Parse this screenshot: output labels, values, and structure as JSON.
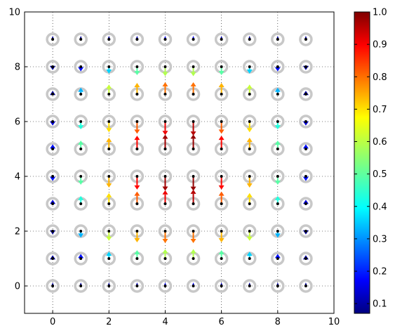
{
  "chart_data": [
    {
      "type": "quiver",
      "xlim": [
        -1,
        10
      ],
      "ylim": [
        -1,
        10
      ],
      "x_ticks": [
        "0",
        "2",
        "4",
        "6",
        "8",
        "10"
      ],
      "y_ticks": [
        "0",
        "2",
        "4",
        "6",
        "8",
        "10"
      ],
      "x_tick_values": [
        0,
        2,
        4,
        6,
        8,
        10
      ],
      "y_tick_values": [
        0,
        2,
        4,
        6,
        8,
        10
      ],
      "grid": "dotted",
      "marker": "light gray ring at each grid point",
      "columns_x": [
        0,
        1,
        2,
        3,
        4,
        5,
        6,
        7,
        8,
        9
      ],
      "rows": [
        {
          "y": 9,
          "dir": 0,
          "magnitude": [
            0.1,
            0.1,
            0.1,
            0.12,
            0.18,
            0.18,
            0.12,
            0.1,
            0.1,
            0.1
          ]
        },
        {
          "y": 8,
          "dir": -1,
          "magnitude": [
            0.1,
            0.2,
            0.38,
            0.5,
            0.58,
            0.58,
            0.5,
            0.38,
            0.2,
            0.1
          ]
        },
        {
          "y": 7,
          "dir": 1,
          "magnitude": [
            0.1,
            0.35,
            0.6,
            0.72,
            0.78,
            0.78,
            0.72,
            0.6,
            0.35,
            0.1
          ]
        },
        {
          "y": 6,
          "dir": -1,
          "magnitude": [
            0.15,
            0.45,
            0.68,
            0.8,
            0.9,
            0.95,
            0.8,
            0.68,
            0.45,
            0.15
          ]
        },
        {
          "y": 5,
          "dir": 1,
          "magnitude": [
            0.2,
            0.5,
            0.72,
            0.88,
            0.97,
            0.98,
            0.88,
            0.72,
            0.5,
            0.2
          ]
        },
        {
          "y": 4,
          "dir": -1,
          "magnitude": [
            0.2,
            0.5,
            0.72,
            0.88,
            0.97,
            0.98,
            0.88,
            0.72,
            0.5,
            0.2
          ]
        },
        {
          "y": 3,
          "dir": 1,
          "magnitude": [
            0.15,
            0.45,
            0.68,
            0.8,
            0.9,
            0.95,
            0.8,
            0.68,
            0.45,
            0.15
          ]
        },
        {
          "y": 2,
          "dir": -1,
          "magnitude": [
            0.1,
            0.35,
            0.6,
            0.72,
            0.78,
            0.78,
            0.72,
            0.6,
            0.35,
            0.1
          ]
        },
        {
          "y": 1,
          "dir": 1,
          "magnitude": [
            0.1,
            0.2,
            0.38,
            0.5,
            0.58,
            0.58,
            0.5,
            0.38,
            0.2,
            0.1
          ]
        },
        {
          "y": 0,
          "dir": 0,
          "magnitude": [
            0.1,
            0.1,
            0.1,
            0.12,
            0.18,
            0.18,
            0.12,
            0.1,
            0.1,
            0.1
          ]
        }
      ]
    },
    {
      "type": "colorbar",
      "colormap": "jet",
      "range": [
        0.07,
        1.0
      ],
      "tick_values": [
        0.1,
        0.2,
        0.3,
        0.4,
        0.5,
        0.6,
        0.7,
        0.8,
        0.9,
        1.0
      ],
      "tick_labels": [
        "0.1",
        "0.2",
        "0.3",
        "0.4",
        "0.5",
        "0.6",
        "0.7",
        "0.8",
        "0.9",
        "1.0"
      ],
      "colors": [
        "#00007f",
        "#0000ff",
        "#007fff",
        "#00ffff",
        "#7fff7f",
        "#ffff00",
        "#ff7f00",
        "#ff0000",
        "#7f0000"
      ]
    }
  ]
}
